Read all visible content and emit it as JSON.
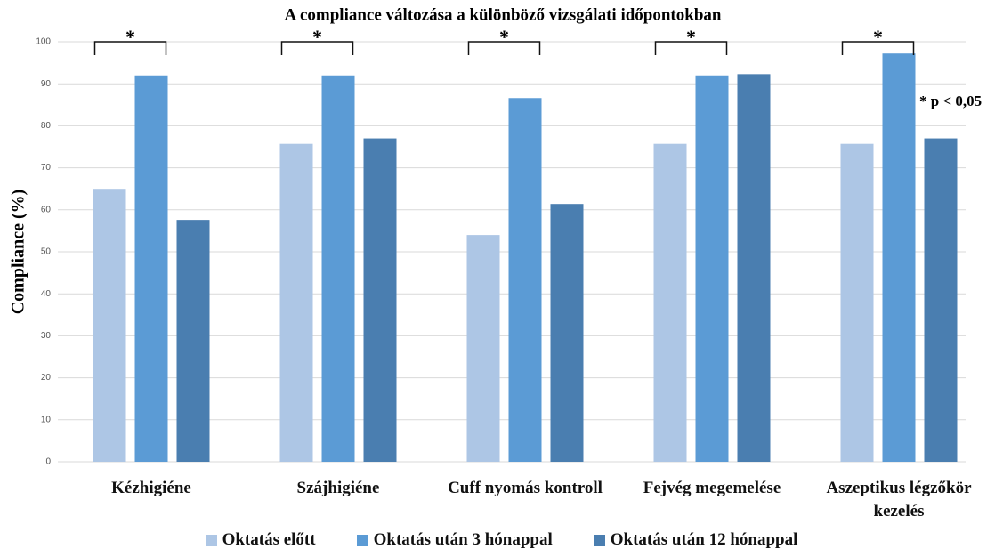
{
  "chart_data": {
    "type": "bar",
    "title": "A compliance változása a különböző vizsgálati időpontokban",
    "y_label": "Compliance (%)",
    "annotation": "* p < 0,05",
    "categories": [
      "Kézhigiéne",
      "Szájhigiéne",
      "Cuff nyomás kontroll",
      "Fejvég megemelése",
      "Aszeptikus légzőkör kezelés"
    ],
    "significance_marks": [
      "*",
      "*",
      "*",
      "*",
      "*"
    ],
    "series": [
      {
        "name": "Oktatás előtt",
        "color": "#adc6e5",
        "values": [
          65,
          75.7,
          54,
          75.7,
          75.7
        ]
      },
      {
        "name": "Oktatás után 3 hónappal",
        "color": "#5b9bd5",
        "values": [
          92,
          92,
          86.6,
          92,
          97.2
        ]
      },
      {
        "name": "Oktatás után 12 hónappal",
        "color": "#4a7eb0",
        "values": [
          57.6,
          77,
          61.4,
          92.3,
          77
        ]
      }
    ],
    "ylim": [
      0,
      100
    ],
    "yticks": [
      0,
      10,
      20,
      30,
      40,
      50,
      60,
      70,
      80,
      90,
      100
    ],
    "grid": true,
    "legend": "bottom"
  }
}
